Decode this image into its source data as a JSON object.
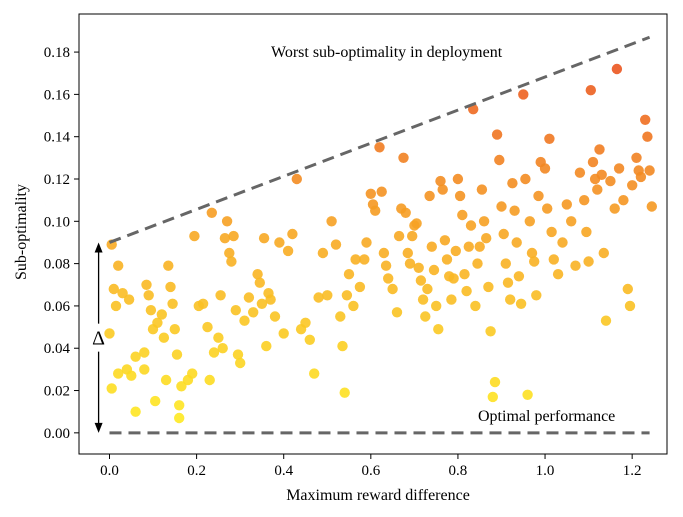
{
  "chart_data": {
    "type": "scatter",
    "xlabel": "Maximum reward difference",
    "ylabel": "Sub-optimality",
    "xlim": [
      -0.07,
      1.28
    ],
    "ylim": [
      -0.01,
      0.198
    ],
    "xticks": [
      0.0,
      0.2,
      0.4,
      0.6,
      0.8,
      1.0,
      1.2
    ],
    "xtick_labels": [
      "0.0",
      "0.2",
      "0.4",
      "0.6",
      "0.8",
      "1.0",
      "1.2"
    ],
    "yticks": [
      0.0,
      0.02,
      0.04,
      0.06,
      0.08,
      0.1,
      0.12,
      0.14,
      0.16,
      0.18
    ],
    "ytick_labels": [
      "0.00",
      "0.02",
      "0.04",
      "0.06",
      "0.08",
      "0.10",
      "0.12",
      "0.14",
      "0.16",
      "0.18"
    ],
    "grid": false,
    "colormap": [
      "#ffee22",
      "#f7a623",
      "#e8431f"
    ],
    "color_range": [
      0.0,
      0.19
    ],
    "upper_line": {
      "label": "Worst sub-optimality in deployment",
      "x": [
        0.0,
        1.24
      ],
      "y": [
        0.09,
        0.187
      ],
      "style": "dashed",
      "color": "#666666"
    },
    "lower_line": {
      "label": "Optimal performance",
      "x": [
        0.0,
        1.24
      ],
      "y": [
        0.0,
        0.0
      ],
      "style": "dashed",
      "color": "#666666"
    },
    "delta_annotation": {
      "label": "Δ",
      "x": -0.025,
      "y_from": 0.0,
      "y_to": 0.09
    },
    "points": [
      [
        0.005,
        0.089
      ],
      [
        0.02,
        0.079
      ],
      [
        0.01,
        0.068
      ],
      [
        0.03,
        0.066
      ],
      [
        0.045,
        0.063
      ],
      [
        0.015,
        0.06
      ],
      [
        0.0,
        0.047
      ],
      [
        0.02,
        0.028
      ],
      [
        0.005,
        0.021
      ],
      [
        0.04,
        0.03
      ],
      [
        0.05,
        0.027
      ],
      [
        0.06,
        0.036
      ],
      [
        0.06,
        0.01
      ],
      [
        0.08,
        0.038
      ],
      [
        0.08,
        0.03
      ],
      [
        0.085,
        0.07
      ],
      [
        0.09,
        0.065
      ],
      [
        0.095,
        0.058
      ],
      [
        0.1,
        0.049
      ],
      [
        0.11,
        0.052
      ],
      [
        0.12,
        0.056
      ],
      [
        0.125,
        0.045
      ],
      [
        0.135,
        0.079
      ],
      [
        0.14,
        0.069
      ],
      [
        0.145,
        0.061
      ],
      [
        0.15,
        0.049
      ],
      [
        0.155,
        0.037
      ],
      [
        0.16,
        0.013
      ],
      [
        0.16,
        0.007
      ],
      [
        0.105,
        0.015
      ],
      [
        0.13,
        0.025
      ],
      [
        0.165,
        0.022
      ],
      [
        0.18,
        0.025
      ],
      [
        0.19,
        0.028
      ],
      [
        0.195,
        0.093
      ],
      [
        0.205,
        0.06
      ],
      [
        0.215,
        0.061
      ],
      [
        0.225,
        0.05
      ],
      [
        0.23,
        0.025
      ],
      [
        0.235,
        0.104
      ],
      [
        0.24,
        0.038
      ],
      [
        0.25,
        0.045
      ],
      [
        0.255,
        0.065
      ],
      [
        0.26,
        0.04
      ],
      [
        0.27,
        0.1
      ],
      [
        0.265,
        0.092
      ],
      [
        0.275,
        0.085
      ],
      [
        0.28,
        0.081
      ],
      [
        0.285,
        0.093
      ],
      [
        0.29,
        0.058
      ],
      [
        0.295,
        0.037
      ],
      [
        0.3,
        0.033
      ],
      [
        0.31,
        0.053
      ],
      [
        0.32,
        0.064
      ],
      [
        0.33,
        0.057
      ],
      [
        0.34,
        0.075
      ],
      [
        0.345,
        0.071
      ],
      [
        0.35,
        0.061
      ],
      [
        0.355,
        0.092
      ],
      [
        0.36,
        0.041
      ],
      [
        0.365,
        0.066
      ],
      [
        0.37,
        0.063
      ],
      [
        0.38,
        0.055
      ],
      [
        0.39,
        0.09
      ],
      [
        0.4,
        0.047
      ],
      [
        0.41,
        0.086
      ],
      [
        0.42,
        0.094
      ],
      [
        0.43,
        0.12
      ],
      [
        0.44,
        0.049
      ],
      [
        0.45,
        0.052
      ],
      [
        0.46,
        0.044
      ],
      [
        0.47,
        0.028
      ],
      [
        0.48,
        0.064
      ],
      [
        0.49,
        0.085
      ],
      [
        0.5,
        0.065
      ],
      [
        0.51,
        0.1
      ],
      [
        0.52,
        0.089
      ],
      [
        0.53,
        0.055
      ],
      [
        0.535,
        0.041
      ],
      [
        0.54,
        0.019
      ],
      [
        0.545,
        0.065
      ],
      [
        0.55,
        0.075
      ],
      [
        0.56,
        0.06
      ],
      [
        0.565,
        0.082
      ],
      [
        0.575,
        0.069
      ],
      [
        0.585,
        0.082
      ],
      [
        0.59,
        0.09
      ],
      [
        0.6,
        0.113
      ],
      [
        0.605,
        0.108
      ],
      [
        0.61,
        0.105
      ],
      [
        0.62,
        0.135
      ],
      [
        0.625,
        0.114
      ],
      [
        0.63,
        0.085
      ],
      [
        0.635,
        0.079
      ],
      [
        0.64,
        0.073
      ],
      [
        0.65,
        0.068
      ],
      [
        0.66,
        0.057
      ],
      [
        0.665,
        0.093
      ],
      [
        0.67,
        0.106
      ],
      [
        0.675,
        0.13
      ],
      [
        0.68,
        0.104
      ],
      [
        0.685,
        0.085
      ],
      [
        0.69,
        0.08
      ],
      [
        0.695,
        0.093
      ],
      [
        0.7,
        0.098
      ],
      [
        0.705,
        0.099
      ],
      [
        0.71,
        0.078
      ],
      [
        0.715,
        0.072
      ],
      [
        0.72,
        0.063
      ],
      [
        0.725,
        0.055
      ],
      [
        0.73,
        0.068
      ],
      [
        0.735,
        0.112
      ],
      [
        0.74,
        0.088
      ],
      [
        0.745,
        0.077
      ],
      [
        0.75,
        0.06
      ],
      [
        0.755,
        0.049
      ],
      [
        0.76,
        0.119
      ],
      [
        0.765,
        0.115
      ],
      [
        0.77,
        0.091
      ],
      [
        0.775,
        0.082
      ],
      [
        0.78,
        0.074
      ],
      [
        0.785,
        0.063
      ],
      [
        0.79,
        0.073
      ],
      [
        0.795,
        0.086
      ],
      [
        0.8,
        0.12
      ],
      [
        0.805,
        0.112
      ],
      [
        0.81,
        0.103
      ],
      [
        0.815,
        0.075
      ],
      [
        0.82,
        0.067
      ],
      [
        0.825,
        0.088
      ],
      [
        0.83,
        0.098
      ],
      [
        0.835,
        0.153
      ],
      [
        0.84,
        0.06
      ],
      [
        0.845,
        0.08
      ],
      [
        0.85,
        0.088
      ],
      [
        0.855,
        0.115
      ],
      [
        0.86,
        0.1
      ],
      [
        0.865,
        0.092
      ],
      [
        0.87,
        0.069
      ],
      [
        0.875,
        0.048
      ],
      [
        0.88,
        0.017
      ],
      [
        0.885,
        0.024
      ],
      [
        0.89,
        0.141
      ],
      [
        0.895,
        0.129
      ],
      [
        0.9,
        0.107
      ],
      [
        0.905,
        0.094
      ],
      [
        0.91,
        0.08
      ],
      [
        0.915,
        0.071
      ],
      [
        0.92,
        0.063
      ],
      [
        0.925,
        0.118
      ],
      [
        0.93,
        0.105
      ],
      [
        0.935,
        0.09
      ],
      [
        0.94,
        0.074
      ],
      [
        0.945,
        0.061
      ],
      [
        0.95,
        0.16
      ],
      [
        0.955,
        0.12
      ],
      [
        0.96,
        0.018
      ],
      [
        0.965,
        0.1
      ],
      [
        0.97,
        0.085
      ],
      [
        0.975,
        0.081
      ],
      [
        0.98,
        0.065
      ],
      [
        0.985,
        0.112
      ],
      [
        0.99,
        0.128
      ],
      [
        1.0,
        0.125
      ],
      [
        1.005,
        0.106
      ],
      [
        1.01,
        0.139
      ],
      [
        1.015,
        0.095
      ],
      [
        1.02,
        0.082
      ],
      [
        1.03,
        0.075
      ],
      [
        1.04,
        0.09
      ],
      [
        1.05,
        0.108
      ],
      [
        1.06,
        0.1
      ],
      [
        1.07,
        0.079
      ],
      [
        1.08,
        0.123
      ],
      [
        1.09,
        0.11
      ],
      [
        1.095,
        0.095
      ],
      [
        1.1,
        0.081
      ],
      [
        1.105,
        0.162
      ],
      [
        1.11,
        0.128
      ],
      [
        1.115,
        0.12
      ],
      [
        1.12,
        0.115
      ],
      [
        1.125,
        0.134
      ],
      [
        1.13,
        0.122
      ],
      [
        1.135,
        0.085
      ],
      [
        1.14,
        0.053
      ],
      [
        1.15,
        0.119
      ],
      [
        1.16,
        0.106
      ],
      [
        1.165,
        0.172
      ],
      [
        1.17,
        0.125
      ],
      [
        1.18,
        0.11
      ],
      [
        1.19,
        0.068
      ],
      [
        1.195,
        0.06
      ],
      [
        1.2,
        0.117
      ],
      [
        1.21,
        0.13
      ],
      [
        1.215,
        0.124
      ],
      [
        1.22,
        0.121
      ],
      [
        1.23,
        0.148
      ],
      [
        1.235,
        0.14
      ],
      [
        1.24,
        0.124
      ],
      [
        1.245,
        0.107
      ]
    ]
  }
}
